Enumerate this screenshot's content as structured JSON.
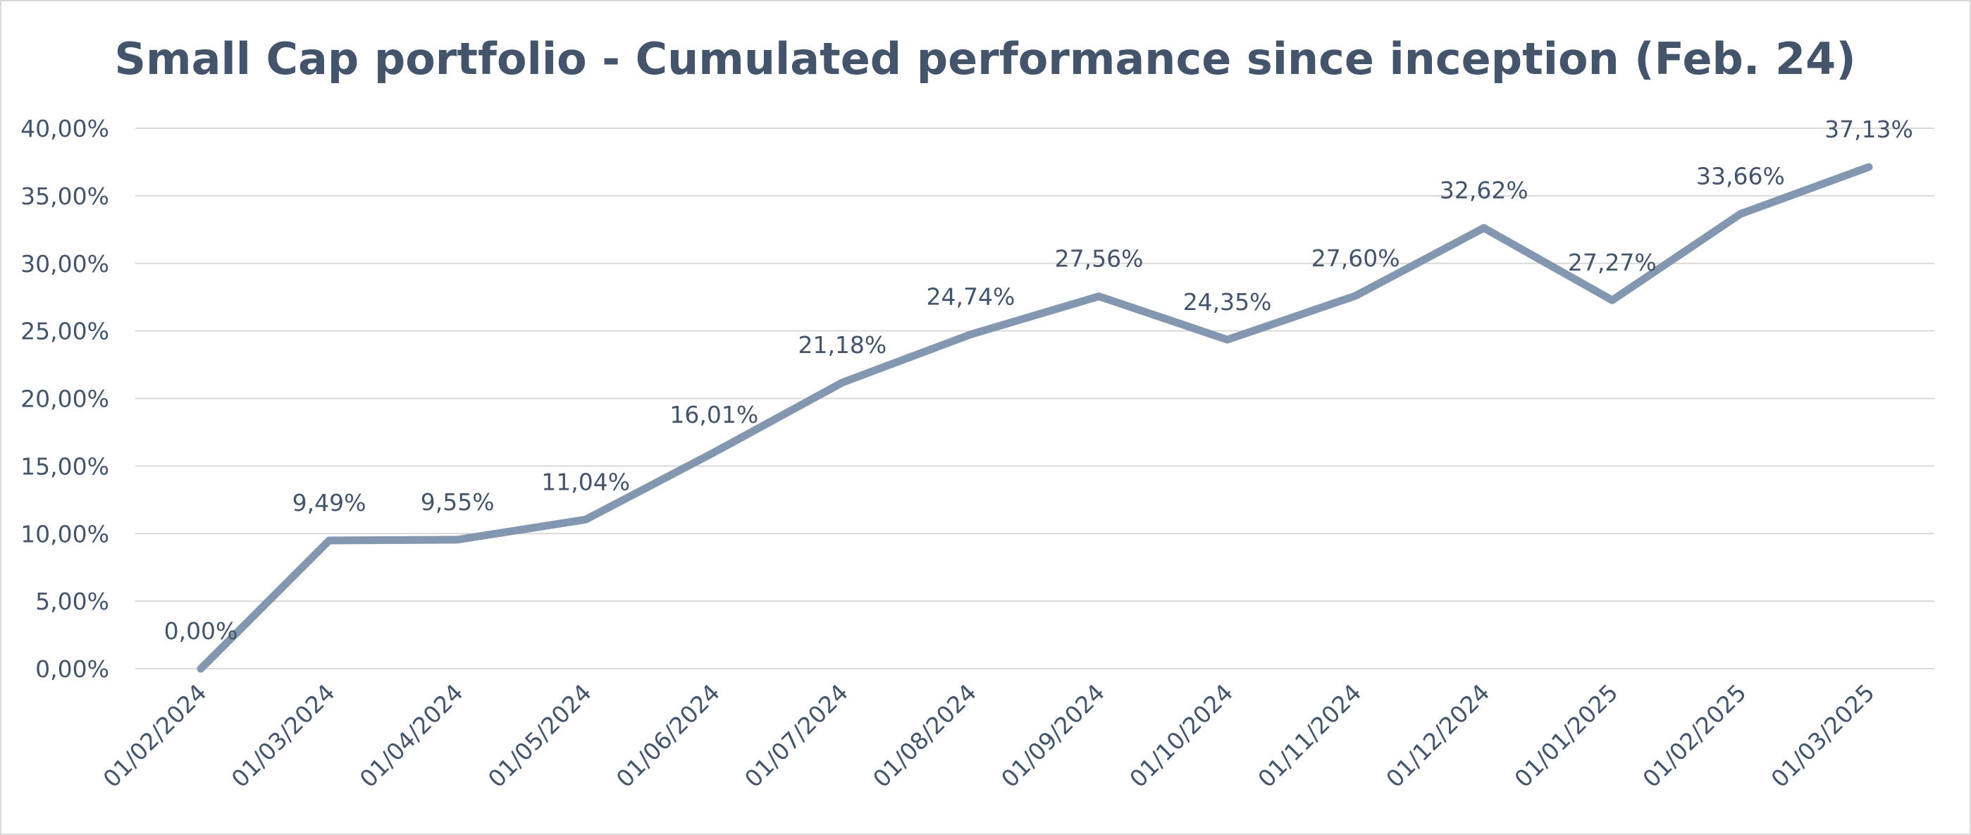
{
  "colors": {
    "text": "#44546a",
    "line": "#8497b0",
    "grid": "#d9d9d9"
  },
  "chart_data": {
    "type": "line",
    "title": "Small Cap portfolio - Cumulated performance since inception (Feb. 24)",
    "xlabel": "",
    "ylabel": "",
    "grid": true,
    "legend": "none",
    "ylim": [
      0,
      40
    ],
    "yticks": [
      "0,00%",
      "5,00%",
      "10,00%",
      "15,00%",
      "20,00%",
      "25,00%",
      "30,00%",
      "35,00%",
      "40,00%"
    ],
    "categories": [
      "01/02/2024",
      "01/03/2024",
      "01/04/2024",
      "01/05/2024",
      "01/06/2024",
      "01/07/2024",
      "01/08/2024",
      "01/09/2024",
      "01/10/2024",
      "01/11/2024",
      "01/12/2024",
      "01/01/2025",
      "01/02/2025",
      "01/03/2025"
    ],
    "series": [
      {
        "values": [
          0.0,
          9.49,
          9.55,
          11.04,
          16.01,
          21.18,
          24.74,
          27.56,
          24.35,
          27.6,
          32.62,
          27.27,
          33.66,
          37.13
        ],
        "labels": [
          "0,00%",
          "9,49%",
          "9,55%",
          "11,04%",
          "16,01%",
          "21,18%",
          "24,74%",
          "27,56%",
          "24,35%",
          "27,60%",
          "32,62%",
          "27,27%",
          "33,66%",
          "37,13%"
        ]
      }
    ]
  }
}
